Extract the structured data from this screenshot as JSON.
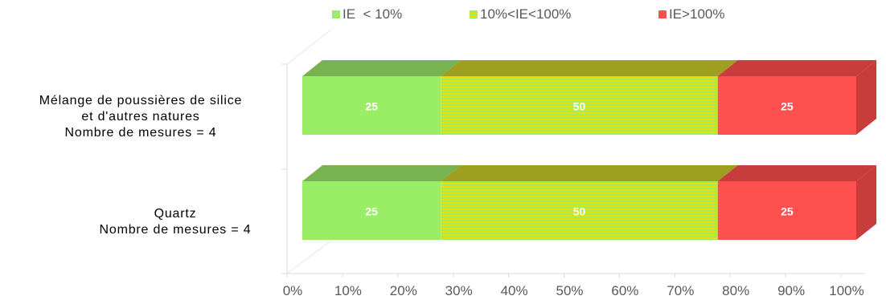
{
  "chart_data": {
    "type": "bar",
    "orientation": "horizontal",
    "stacked": "percent",
    "three_d": true,
    "categories": [
      [
        "Mélange de poussières de silice",
        "et d'autres natures",
        "Nombre de mesures = 4"
      ],
      [
        "Quartz",
        "Nombre de mesures = 4"
      ]
    ],
    "series": [
      {
        "name": "IE  < 10%",
        "values": [
          25,
          25
        ],
        "color": "#99EE66",
        "top_color": "#77B350",
        "pattern": "solid"
      },
      {
        "name": "10%<IE<100%",
        "values": [
          50,
          50
        ],
        "color": "#C8C81E",
        "top_color": "#9E9E20",
        "pattern": "striped",
        "stripe_colors": [
          "#E8E000",
          "#99EE66"
        ]
      },
      {
        "name": "IE>100%",
        "values": [
          25,
          25
        ],
        "color": "#FF5050",
        "top_color": "#C83C3C",
        "pattern": "solid"
      }
    ],
    "value_labels": [
      [
        "25",
        "50",
        "25"
      ],
      [
        "25",
        "50",
        "25"
      ]
    ],
    "xticks": [
      "0%",
      "10%",
      "20%",
      "30%",
      "40%",
      "50%",
      "60%",
      "70%",
      "80%",
      "90%",
      "100%"
    ],
    "xlim": [
      0,
      100
    ],
    "grid": false,
    "legend_position": "top"
  }
}
